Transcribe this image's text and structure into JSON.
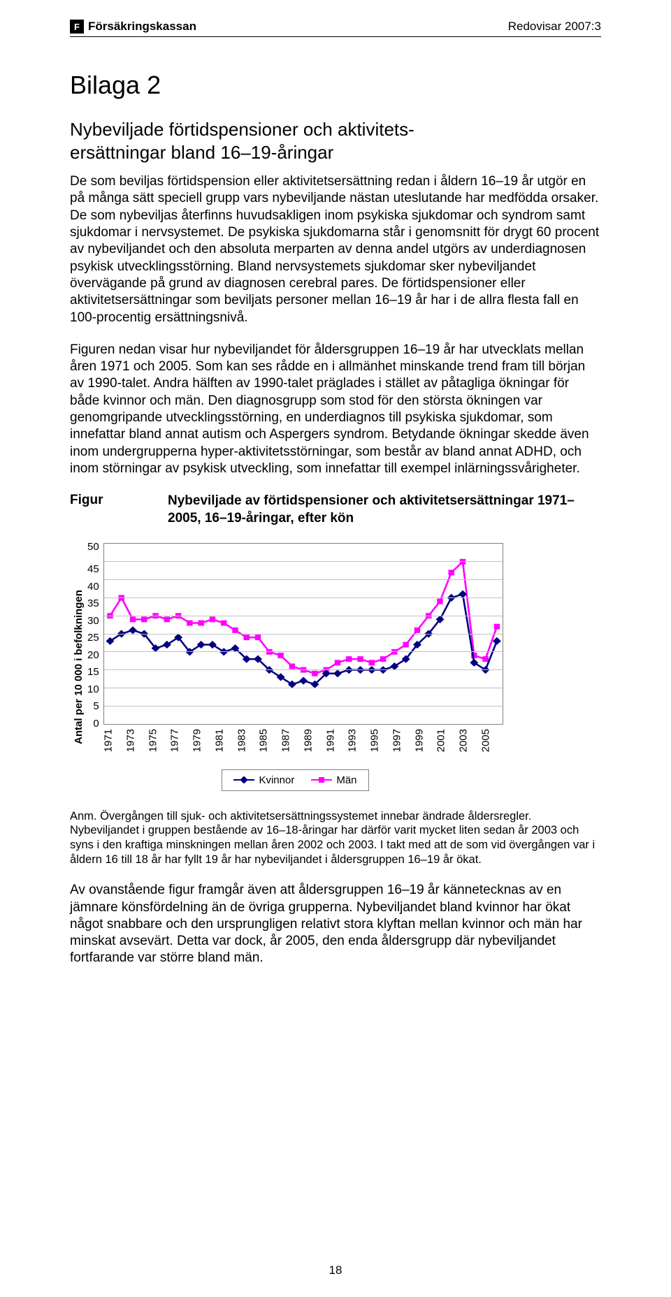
{
  "header": {
    "brand": "Försäkringskassan",
    "right_label": "Redovisar 2007:3"
  },
  "title": "Bilaga 2",
  "subtitle": "Nybeviljade förtidspensioner och aktivitets-\nersättningar bland 16–19-åringar",
  "paragraphs": {
    "p1": "De som beviljas förtidspension eller aktivitetsersättning redan i åldern 16–19 år utgör en på många sätt speciell grupp vars nybeviljande nästan uteslutande har medfödda orsaker. De som nybeviljas återfinns huvudsakligen inom psykiska sjukdomar och syndrom samt sjukdomar i nervsystemet. De psykiska sjukdomarna står i genomsnitt för drygt 60 procent av nybeviljandet och den absoluta merparten av denna andel utgörs av underdiagnosen psykisk utvecklingsstörning. Bland nervsystemets sjukdomar sker nybeviljandet övervägande på grund av diagnosen cerebral pares. De förtidspensioner eller aktivitetsersättningar som beviljats personer mellan 16–19 år har i de allra flesta fall en 100-procentig ersättningsnivå.",
    "p2": "Figuren nedan visar hur nybeviljandet för åldersgruppen 16–19 år har utvecklats mellan åren 1971 och 2005. Som kan ses rådde en i allmänhet minskande trend fram till början av 1990-talet. Andra hälften av 1990-talet präglades i stället av påtagliga ökningar för både kvinnor och män. Den diagnosgrupp som stod för den största ökningen var genomgripande utvecklingsstörning, en underdiagnos till psykiska sjukdomar, som innefattar bland annat autism och Aspergers syndrom. Betydande ökningar skedde även inom undergrupperna hyper-aktivitetsstörningar, som består av bland annat ADHD, och inom störningar av psykisk utveckling, som innefattar till exempel inlärningssvårigheter.",
    "p3": "Av ovanstående figur framgår även att åldersgruppen 16–19 år kännetecknas av en jämnare könsfördelning än de övriga grupperna. Nybeviljandet bland kvinnor har ökat något snabbare och den ursprungligen relativt stora klyftan mellan kvinnor och män har minskat avsevärt. Detta var dock, år 2005, den enda åldersgrupp där nybeviljandet fortfarande var större bland män."
  },
  "figure": {
    "label": "Figur",
    "title": "Nybeviljade av förtidspensioner och aktivitetsersättningar 1971–2005, 16–19-åringar, efter kön",
    "y_axis_label": "Antal per 10 000 i befolkningen",
    "y_ticks": [
      50,
      45,
      40,
      35,
      30,
      25,
      20,
      15,
      10,
      5,
      0
    ],
    "x_ticks": [
      1971,
      1973,
      1975,
      1977,
      1979,
      1981,
      1983,
      1985,
      1987,
      1989,
      1991,
      1993,
      1995,
      1997,
      1999,
      2001,
      2003,
      2005
    ],
    "series": [
      {
        "name": "Kvinnor",
        "color": "#000080",
        "marker": "diamond",
        "marker_size": 8,
        "line_width": 2.5,
        "years": [
          1971,
          1972,
          1973,
          1974,
          1975,
          1976,
          1977,
          1978,
          1979,
          1980,
          1981,
          1982,
          1983,
          1984,
          1985,
          1986,
          1987,
          1988,
          1989,
          1990,
          1991,
          1992,
          1993,
          1994,
          1995,
          1996,
          1997,
          1998,
          1999,
          2000,
          2001,
          2002,
          2003,
          2004,
          2005
        ],
        "values": [
          23,
          25,
          26,
          25,
          21,
          22,
          24,
          20,
          22,
          22,
          20,
          21,
          18,
          18,
          15,
          13,
          11,
          12,
          11,
          14,
          14,
          15,
          15,
          15,
          15,
          16,
          18,
          22,
          25,
          29,
          35,
          36,
          17,
          15,
          23
        ]
      },
      {
        "name": "Män",
        "color": "#ff00ff",
        "marker": "square",
        "marker_size": 8,
        "line_width": 2.5,
        "years": [
          1971,
          1972,
          1973,
          1974,
          1975,
          1976,
          1977,
          1978,
          1979,
          1980,
          1981,
          1982,
          1983,
          1984,
          1985,
          1986,
          1987,
          1988,
          1989,
          1990,
          1991,
          1992,
          1993,
          1994,
          1995,
          1996,
          1997,
          1998,
          1999,
          2000,
          2001,
          2002,
          2003,
          2004,
          2005
        ],
        "values": [
          30,
          35,
          29,
          29,
          30,
          29,
          30,
          28,
          28,
          29,
          28,
          26,
          24,
          24,
          20,
          19,
          16,
          15,
          14,
          15,
          17,
          18,
          18,
          17,
          18,
          20,
          22,
          26,
          30,
          34,
          42,
          45,
          19,
          18,
          27
        ]
      }
    ],
    "ylim": [
      0,
      50
    ],
    "background_color": "#ffffff",
    "grid_color": "#c0c0c0",
    "legend_labels": {
      "kvinnor": "Kvinnor",
      "man": "Män"
    }
  },
  "footnote": "Anm. Övergången till sjuk- och aktivitetsersättningssystemet innebar ändrade åldersregler. Nybeviljandet i gruppen bestående av 16–18-åringar har därför varit mycket liten sedan år 2003 och syns i den kraftiga minskningen mellan åren 2002 och 2003. I takt med att de som vid övergången var i åldern 16 till 18 år har fyllt 19 år har nybeviljandet i åldersgruppen 16–19 år ökat.",
  "page_number": "18"
}
